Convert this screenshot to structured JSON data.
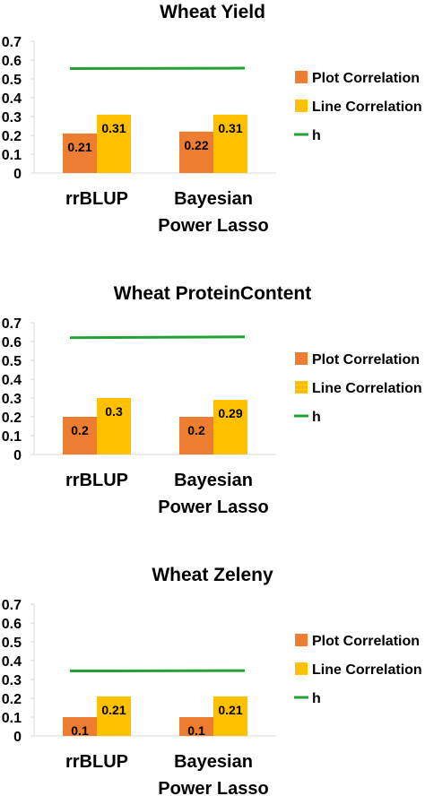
{
  "colors": {
    "plot": "#ED7D31",
    "line": "#FFC000",
    "h": "#23A136",
    "axis": "#D9D9D9",
    "text": "#000000"
  },
  "chart_data": [
    {
      "type": "bar",
      "title": "Wheat Yield",
      "categories": [
        "rrBLUP",
        "Bayesian Power Lasso"
      ],
      "series": [
        {
          "name": "Plot Correlation",
          "type": "bar",
          "values": [
            0.21,
            0.22
          ]
        },
        {
          "name": "Line Correlation",
          "type": "bar",
          "values": [
            0.31,
            0.31
          ]
        },
        {
          "name": "h",
          "type": "line",
          "values": [
            0.555,
            0.557
          ]
        }
      ],
      "ylim": [
        0,
        0.7
      ],
      "yticks": [
        "0",
        "0.1",
        "0.2",
        "0.3",
        "0.4",
        "0.5",
        "0.6",
        "0.7"
      ],
      "legend": [
        "Plot Correlation",
        "Line Correlation",
        "h"
      ],
      "legend_position": "right",
      "grid": false
    },
    {
      "type": "bar",
      "title": "Wheat ProteinContent",
      "categories": [
        "rrBLUP",
        "Bayesian Power Lasso"
      ],
      "series": [
        {
          "name": "Plot Correlation",
          "type": "bar",
          "values": [
            0.2,
            0.2
          ]
        },
        {
          "name": "Line Correlation",
          "type": "bar",
          "values": [
            0.3,
            0.29
          ]
        },
        {
          "name": "h",
          "type": "line",
          "values": [
            0.62,
            0.625
          ]
        }
      ],
      "ylim": [
        0,
        0.7
      ],
      "yticks": [
        "0",
        "0.1",
        "0.2",
        "0.3",
        "0.4",
        "0.5",
        "0.6",
        "0.7"
      ],
      "legend": [
        "Plot Correlation",
        "Line Correlation",
        "h"
      ],
      "legend_position": "right",
      "grid": false
    },
    {
      "type": "bar",
      "title": "Wheat Zeleny",
      "categories": [
        "rrBLUP",
        "Bayesian Power Lasso"
      ],
      "series": [
        {
          "name": "Plot Correlation",
          "type": "bar",
          "values": [
            0.1,
            0.1
          ]
        },
        {
          "name": "Line Correlation",
          "type": "bar",
          "values": [
            0.21,
            0.21
          ]
        },
        {
          "name": "h",
          "type": "line",
          "values": [
            0.345,
            0.347
          ]
        }
      ],
      "ylim": [
        0,
        0.7
      ],
      "yticks": [
        "0",
        "0.1",
        "0.2",
        "0.3",
        "0.4",
        "0.5",
        "0.6",
        "0.7"
      ],
      "legend": [
        "Plot Correlation",
        "Line Correlation",
        "h"
      ],
      "legend_position": "right",
      "grid": false
    }
  ]
}
